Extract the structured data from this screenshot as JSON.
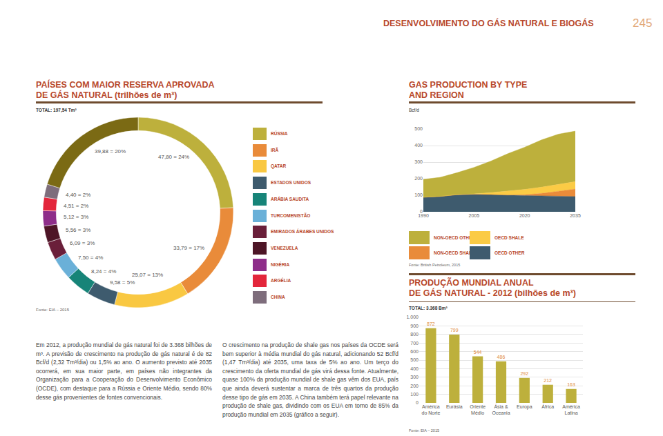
{
  "header": {
    "title": "DESENVOLVIMENTO DO GÁS NATURAL E BIOGÁS",
    "page_number": "245"
  },
  "paragraphs": [
    "Em 2012, a produção mundial de gás natural foi de 3.368 bilhões de m³. A previsão de crescimento na produção de gás natural é de 82 Bcf/d (2,32 Tm³/dia) ou 1,5% ao ano. O aumento previsto até 2035 ocorrerá, em sua maior parte, em países não integrantes da Organização para a Cooperação do Desenvolvimento Econômico (OCDE), com destaque para a Rússia e Oriente Médio, sendo 80% desse gás provenientes de fontes convencionais.",
    "O crescimento na produção de shale gas nos países da OCDE será bem superior à média mundial do gás natural, adicionando 52 Bcf/d (1,47 Tm³/dia) até 2035, uma taxa de 5% ao ano. Um terço do crescimento da oferta mundial de gás virá dessa fonte. Atualmente, quase 100% da produção mundial de shale gas vêm dos EUA, país que ainda deverá sustentar a marca de três quartos da produção desse tipo de gás em 2035. A China também terá papel relevante na produção de shale gas, dividindo com os EUA em torno de 85% da produção mundial em 2035 (gráfico a seguir)."
  ],
  "chart_data": [
    {
      "type": "pie",
      "title": "PAÍSES COM MAIOR RESERVA APROVADA\nDE GÁS NATURAL (trilhões de m³)",
      "subtitle": "TOTAL: 197,54 Tm³",
      "source": "Fonte: EIA – 2015",
      "categories": [
        "RÚSSIA",
        "IRÃ",
        "QATAR",
        "ESTADOS UNIDOS",
        "ARÁBIA SAUDITA",
        "TURCOMENISTÃO",
        "EMIRADOS ÁRABES UNIDOS",
        "VENEZUELA",
        "NIGÉRIA",
        "ARGÉLIA",
        "CHINA",
        null
      ],
      "values": [
        47.8,
        33.79,
        25.07,
        9.58,
        8.24,
        7.5,
        6.09,
        5.56,
        5.12,
        4.51,
        4.4,
        39.88
      ],
      "value_labels": [
        "47,80 = 24%",
        "33,79 = 17%",
        "25,07 = 13%",
        "9,58 = 5%",
        "8,24 = 4%",
        "7,50 = 4%",
        "6,09 = 3%",
        "5,56 = 3%",
        "5,12 = 3%",
        "4,51 = 2%",
        "4,40 = 2%",
        "39,88 = 20%"
      ],
      "colors": [
        "#bdb03c",
        "#e98b3a",
        "#f9c842",
        "#3e5b6e",
        "#178478",
        "#6ab0d8",
        "#6a1f3a",
        "#4d1526",
        "#8e2e8a",
        "#e3263b",
        "#7e6d7c",
        "#7b6a14"
      ],
      "data_labels": true
    },
    {
      "type": "area",
      "title": "GAS PRODUCTION BY TYPE\nAND REGION",
      "ylabel": "Bcf/d",
      "source": "Fonte: British Petroleum, 2015",
      "stacked": true,
      "x": [
        1990,
        1995,
        2000,
        2005,
        2010,
        2015,
        2020,
        2025,
        2030,
        2035
      ],
      "series": [
        {
          "name": "NON-OECD OTHER",
          "color": "#bdb03c",
          "values": [
            108,
            115,
            132,
            160,
            190,
            225,
            255,
            285,
            303,
            305
          ]
        },
        {
          "name": "OECD SHALE",
          "color": "#fbcb45",
          "values": [
            0,
            0,
            1,
            2,
            12,
            25,
            32,
            38,
            42,
            45
          ]
        },
        {
          "name": "NON-OECD SHALE",
          "color": "#e98b3a",
          "values": [
            0,
            0,
            0,
            0,
            0,
            1,
            5,
            15,
            30,
            45
          ]
        },
        {
          "name": "OECD OTHER",
          "color": "#3e5b6e",
          "values": [
            88,
            93,
            103,
            106,
            104,
            100,
            98,
            96,
            94,
            92
          ]
        }
      ],
      "xlim": [
        1990,
        2035
      ],
      "xticks": [
        1990,
        2005,
        2020,
        2035
      ],
      "ylim": [
        0,
        500
      ],
      "yticks": [
        0,
        100,
        200,
        300,
        400,
        500
      ],
      "grid": true
    },
    {
      "type": "bar",
      "title": "PRODUÇÃO MUNDIAL ANUAL\nDE GÁS NATURAL - 2012 (bilhões de m³)",
      "subtitle": "TOTAL: 3.368 Bm³",
      "source": "Fonte: EIA – 2015",
      "categories": [
        "América do Norte",
        "Eurásia",
        "Oriente Médio",
        "Ásia & Oceania",
        "Europa",
        "África",
        "América Latina"
      ],
      "values": [
        872,
        799,
        544,
        486,
        292,
        212,
        163
      ],
      "color": "#bdb03c",
      "data_labels": true,
      "ylim": [
        0,
        1000
      ],
      "yticks": [
        0,
        100,
        200,
        300,
        400,
        500,
        600,
        700,
        800,
        900,
        {
          "value": 1000,
          "label": "1.000"
        }
      ],
      "grid": true
    }
  ]
}
